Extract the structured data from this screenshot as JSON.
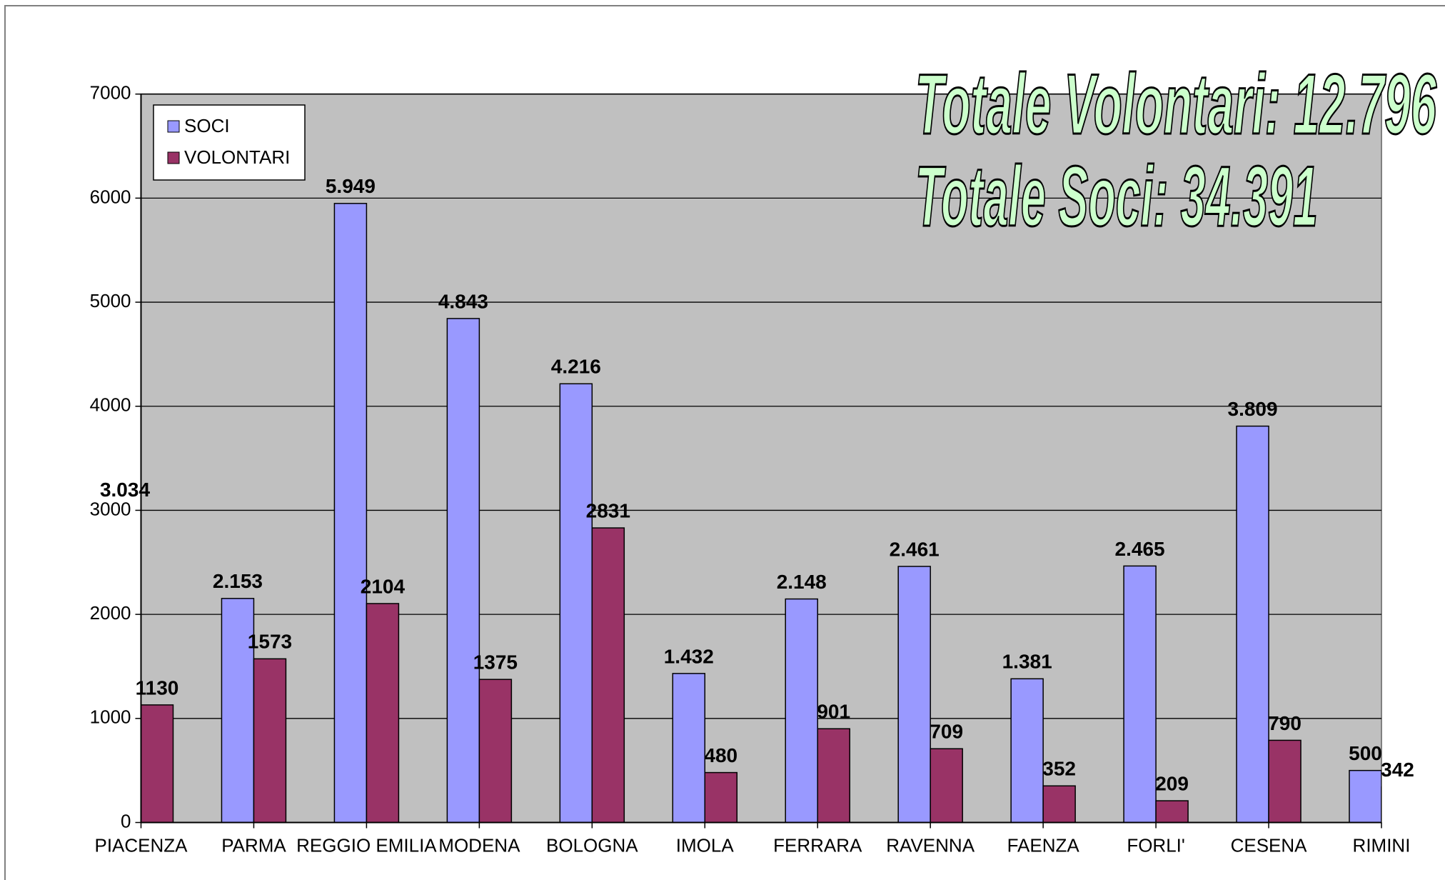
{
  "chart_data": {
    "type": "bar",
    "annotations": [
      "Totale Volontari: 12.796",
      "Totale Soci: 34.391"
    ],
    "categories": [
      "PIACENZA",
      "PARMA",
      "REGGIO EMILIA",
      "MODENA",
      "BOLOGNA",
      "IMOLA",
      "FERRARA",
      "RAVENNA",
      "FAENZA",
      "FORLI'",
      "CESENA",
      "RIMINI"
    ],
    "series": [
      {
        "name": "SOCI",
        "color": "#9999ff",
        "values": [
          3034,
          2153,
          5949,
          4843,
          4216,
          1432,
          2148,
          2461,
          1381,
          2465,
          3809,
          500
        ],
        "value_labels": [
          "3.034",
          "2.153",
          "5.949",
          "4.843",
          "4.216",
          "1.432",
          "2.148",
          "2.461",
          "1.381",
          "2.465",
          "3.809",
          "500"
        ]
      },
      {
        "name": "VOLONTARI",
        "color": "#993366",
        "values": [
          1130,
          1573,
          2104,
          1375,
          2831,
          480,
          901,
          709,
          352,
          209,
          790,
          342
        ]
      }
    ],
    "ylim": [
      0,
      7000
    ],
    "yticks": [
      0,
      1000,
      2000,
      3000,
      4000,
      5000,
      6000,
      7000
    ],
    "grid": true,
    "legend": "top-left"
  }
}
